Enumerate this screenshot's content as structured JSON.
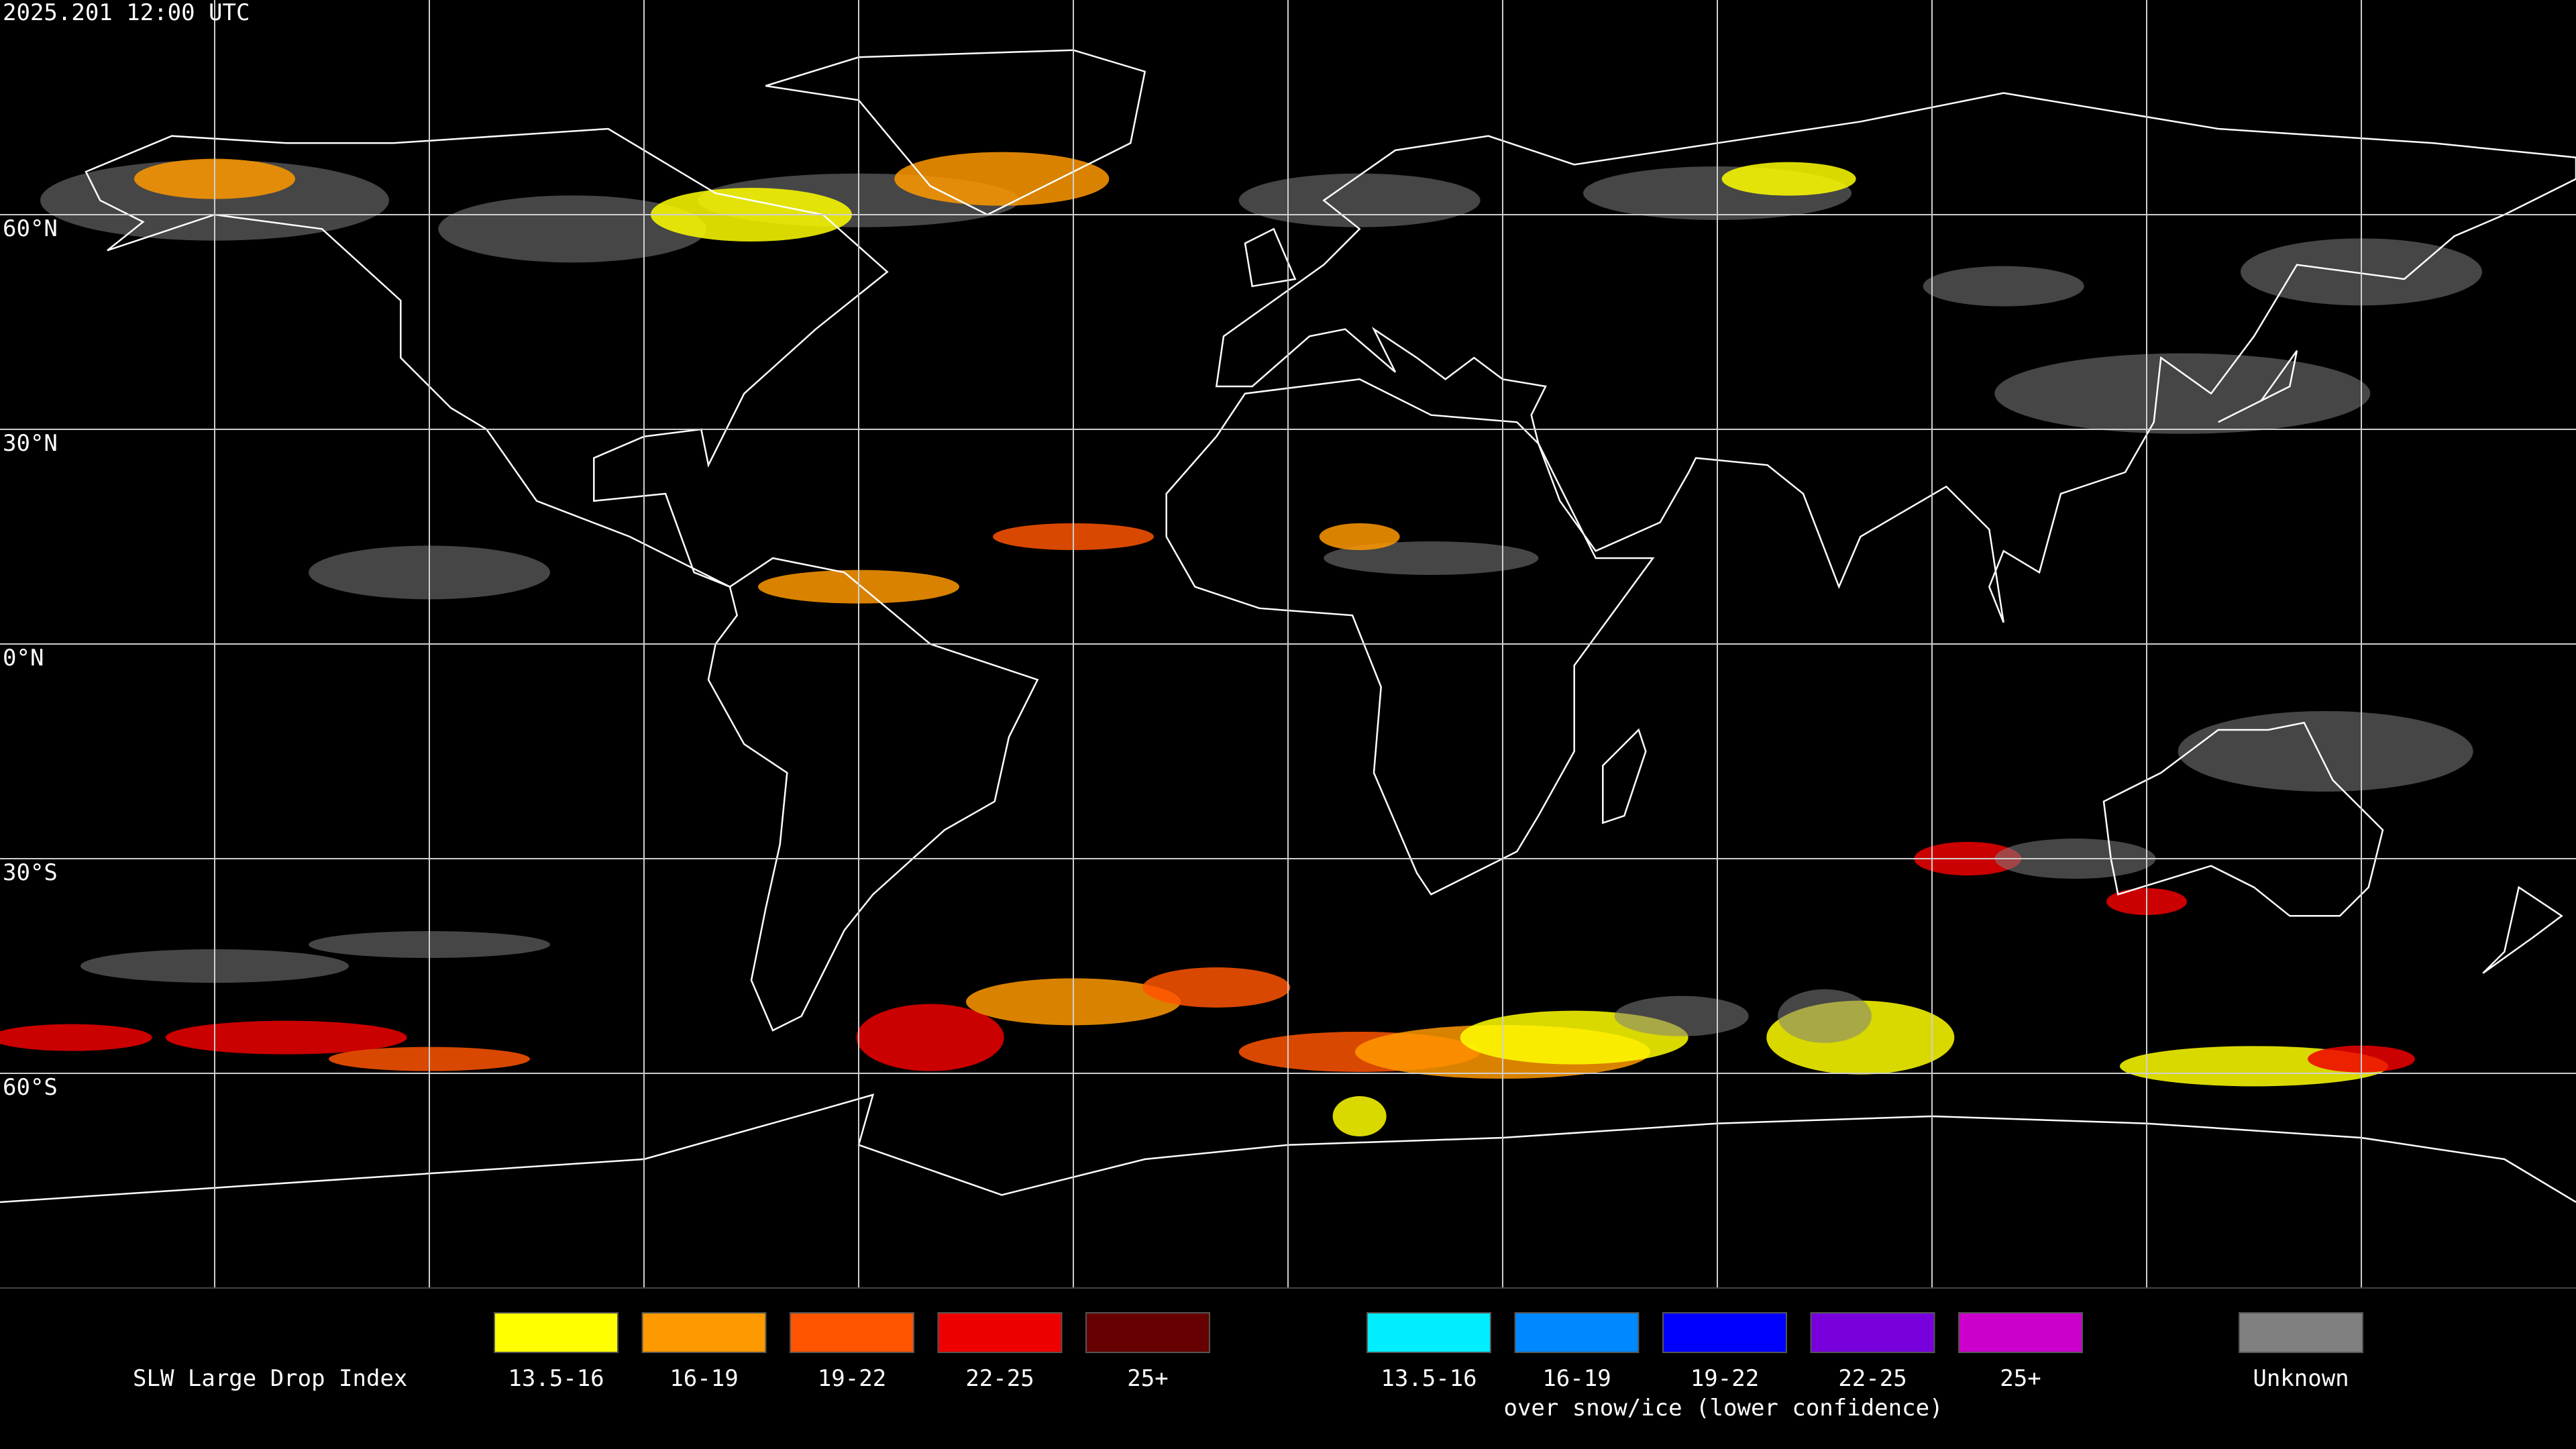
{
  "title": "2025.201 12:00 UTC",
  "latitude_labels": [
    "60°N",
    "30°N",
    "0°N",
    "30°S",
    "60°S"
  ],
  "legend": {
    "title": "SLW Large Drop Index",
    "liquid": [
      {
        "label": "13.5-16",
        "color": "#ffff00"
      },
      {
        "label": "16-19",
        "color": "#ff9900"
      },
      {
        "label": "19-22",
        "color": "#ff5500"
      },
      {
        "label": "22-25",
        "color": "#ee0000"
      },
      {
        "label": "25+",
        "color": "#660000"
      }
    ],
    "snow_ice": [
      {
        "label": "13.5-16",
        "color": "#00eeff"
      },
      {
        "label": "16-19",
        "color": "#0088ff"
      },
      {
        "label": "19-22",
        "color": "#0000ff"
      },
      {
        "label": "22-25",
        "color": "#7700dd"
      },
      {
        "label": "25+",
        "color": "#cc00cc"
      }
    ],
    "snow_ice_note": "over snow/ice (lower confidence)",
    "unknown": {
      "label": "Unknown",
      "color": "#808080"
    }
  }
}
